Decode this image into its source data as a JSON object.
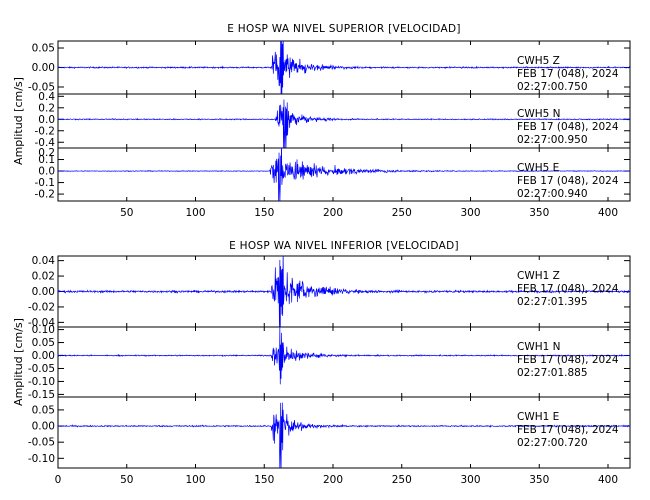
{
  "chart_data": [
    {
      "type": "line",
      "title": "E HOSP WA NIVEL SUPERIOR [VELOCIDAD]",
      "ylabel": "Amplitud [cm/s]",
      "xlabel": "",
      "xlim": [
        0,
        416
      ],
      "x_ticks": [
        50,
        100,
        150,
        200,
        250,
        300,
        350,
        400
      ],
      "x_tick_labels": [
        "50",
        "100",
        "150",
        "200",
        "250",
        "300",
        "350",
        "400"
      ],
      "grid": false,
      "traces": [
        {
          "station": "CWH5",
          "component": "Z",
          "date": "FEB 17 (048), 2024",
          "time": "02:27:00.750",
          "ylim": [
            -0.068,
            0.068
          ],
          "y_ticks": [
            0.05,
            0.0,
            -0.05
          ],
          "y_tick_labels": [
            "0.05",
            "0.00",
            "-0.05"
          ],
          "onset": 155,
          "peak": 0.066,
          "noise": 0.0012,
          "decay": 18,
          "skew": 0,
          "clip_bottom": false
        },
        {
          "station": "CWH5",
          "component": "N",
          "date": "FEB 17 (048), 2024",
          "time": "02:27:00.950",
          "ylim": [
            -0.5,
            0.44
          ],
          "y_ticks": [
            0.4,
            0.2,
            0.0,
            -0.2,
            -0.4
          ],
          "y_tick_labels": [
            "0.4",
            "0.2",
            "0.0",
            "-0.2",
            "-0.4"
          ],
          "onset": 158,
          "peak": 0.32,
          "noise": 0.006,
          "decay": 14,
          "skew": 0,
          "clip_bottom": true
        },
        {
          "station": "CWH5",
          "component": "E",
          "date": "FEB 17 (048), 2024",
          "time": "02:27:00.940",
          "ylim": [
            -0.26,
            0.2
          ],
          "y_ticks": [
            0.1,
            0.0,
            -0.1,
            -0.2
          ],
          "y_tick_labels": [
            "0.1",
            "0.0",
            "-0.1",
            "-0.2"
          ],
          "y_edge_labels": [
            "0.2"
          ],
          "onset": 154,
          "peak": 0.19,
          "noise": 0.002,
          "decay": 32,
          "skew": 0.1,
          "clip_bottom": true
        }
      ]
    },
    {
      "type": "line",
      "title": "E HOSP WA NIVEL INFERIOR [VELOCIDAD]",
      "ylabel": "Amplitud [cm/s]",
      "xlabel": "",
      "xlim": [
        0,
        416
      ],
      "x_ticks": [
        0,
        50,
        100,
        150,
        200,
        250,
        300,
        350,
        400
      ],
      "x_tick_labels": [
        "0",
        "50",
        "100",
        "150",
        "200",
        "250",
        "300",
        "350",
        "400"
      ],
      "grid": false,
      "traces": [
        {
          "station": "CWH1",
          "component": "Z",
          "date": "FEB 17 (048), 2024",
          "time": "02:27:01.395",
          "ylim": [
            -0.046,
            0.046
          ],
          "y_ticks": [
            0.04,
            0.02,
            0.0,
            -0.02,
            -0.04
          ],
          "y_tick_labels": [
            "0.04",
            "0.02",
            "0.00",
            "-0.02",
            "-0.04"
          ],
          "onset": 155,
          "peak": 0.042,
          "noise": 0.0009,
          "decay": 22,
          "skew": 0,
          "clip_bottom": false
        },
        {
          "station": "CWH1",
          "component": "N",
          "date": "FEB 17 (048), 2024",
          "time": "02:27:01.885",
          "ylim": [
            -0.16,
            0.11
          ],
          "y_ticks": [
            0.1,
            0.05,
            0.0,
            -0.05,
            -0.1,
            -0.15
          ],
          "y_tick_labels": [
            "0.10",
            "0.05",
            "0.00",
            "-0.05",
            "-0.10",
            "-0.15"
          ],
          "onset": 155,
          "peak": 0.075,
          "noise": 0.0015,
          "decay": 16,
          "skew": 0.3,
          "clip_bottom": false
        },
        {
          "station": "CWH1",
          "component": "E",
          "date": "FEB 17 (048), 2024",
          "time": "02:27:00.720",
          "ylim": [
            -0.13,
            0.09
          ],
          "y_ticks": [
            0.05,
            0.0,
            -0.05,
            -0.1
          ],
          "y_tick_labels": [
            "0.05",
            "0.00",
            "-0.05",
            "-0.10"
          ],
          "onset": 155,
          "peak": 0.07,
          "noise": 0.0014,
          "decay": 14,
          "skew": 0.3,
          "clip_bottom": true
        }
      ]
    }
  ]
}
